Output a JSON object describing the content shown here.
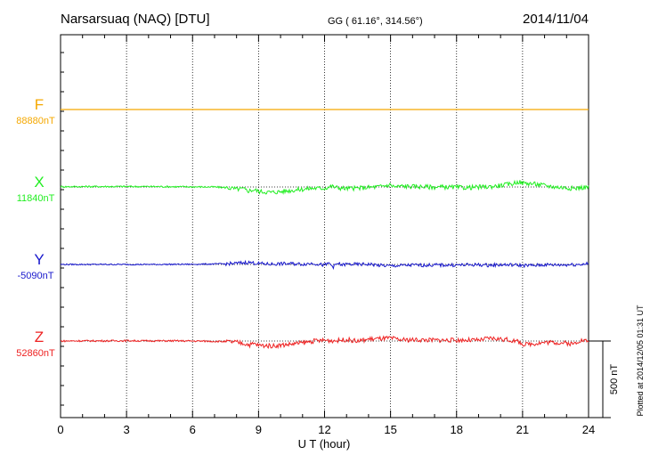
{
  "header": {
    "station": "Narsarsuaq (NAQ)  [DTU]",
    "coords": "GG ( 61.16°, 314.56°)",
    "date": "2014/11/04"
  },
  "chart_data": {
    "type": "line",
    "xlabel": "U T (hour)",
    "xlim": [
      0,
      24
    ],
    "xticks": [
      0,
      3,
      6,
      9,
      12,
      15,
      18,
      21,
      24
    ],
    "scale_bar": {
      "label": "500 nT",
      "value_nT": 500
    },
    "plotted_note": "Plotted at 2014/12/05 01:31  UT",
    "grid": "dotted vertical every 3 hours",
    "series": [
      {
        "name": "F",
        "baseline_label": "88880nT",
        "color": "#f5a800",
        "x": [
          0,
          24
        ],
        "y": [
          0,
          0
        ]
      },
      {
        "name": "X",
        "baseline_label": "11840nT",
        "color": "#22ee22",
        "x": [
          0,
          2,
          4,
          6,
          7,
          7.6,
          8,
          8.3,
          8.5,
          8.8,
          9.0,
          9.3,
          9.6,
          10.0,
          10.5,
          11.0,
          11.5,
          12.0,
          12.3,
          12.6,
          13.0,
          13.5,
          14.0,
          14.5,
          15.0,
          15.2,
          15.5,
          16.0,
          16.5,
          17.0,
          17.5,
          18.0,
          18.5,
          19.0,
          19.5,
          20.0,
          20.5,
          20.8,
          21.0,
          21.5,
          22.0,
          22.5,
          23.0,
          23.3,
          23.6,
          24.0
        ],
        "y": [
          2,
          3,
          3,
          1,
          0,
          -5,
          -14,
          -12,
          -25,
          -18,
          -29,
          -32,
          -35,
          -30,
          -22,
          -15,
          -8,
          -8,
          5,
          -5,
          -10,
          -8,
          -2,
          2,
          15,
          0,
          6,
          3,
          2,
          -1,
          0,
          -3,
          -4,
          -1,
          2,
          10,
          20,
          34,
          26,
          21,
          10,
          0,
          -5,
          -10,
          -5,
          0
        ]
      },
      {
        "name": "Y",
        "baseline_label": "-5090nT",
        "color": "#1818cc",
        "x": [
          0,
          2,
          4,
          6,
          7,
          7.5,
          8,
          8.5,
          9,
          9.5,
          10,
          10.5,
          11,
          11.5,
          12,
          12.2,
          12.4,
          12.6,
          12.8,
          13,
          13.5,
          14,
          14.5,
          15,
          15.5,
          16,
          16.5,
          17,
          18,
          19,
          19.5,
          20,
          20.5,
          21,
          21.5,
          22,
          22.5,
          23,
          23.5,
          24
        ],
        "y": [
          0,
          0,
          0,
          1,
          3,
          4,
          7,
          14,
          6,
          2,
          4,
          5,
          2,
          8,
          -6,
          8,
          -15,
          6,
          -4,
          2,
          0,
          2,
          -6,
          -10,
          -7,
          -4,
          -5,
          -4,
          -4,
          -2,
          -5,
          -2,
          -3,
          -6,
          -7,
          -2,
          -3,
          -2,
          0,
          5
        ]
      },
      {
        "name": "Z",
        "baseline_label": "52860nT",
        "color": "#ee2222",
        "x": [
          0,
          1,
          2,
          3,
          4,
          5,
          6,
          7,
          7.5,
          8.0,
          8.3,
          8.6,
          8.8,
          9.0,
          9.3,
          9.6,
          10.0,
          10.5,
          11.0,
          11.5,
          12.0,
          12.5,
          13.0,
          13.5,
          14.0,
          14.5,
          15.0,
          15.5,
          16.0,
          17.0,
          18.0,
          18.5,
          19.0,
          19.5,
          20.0,
          20.3,
          20.6,
          20.9,
          21.1,
          21.4,
          21.8,
          22.2,
          22.6,
          23.0,
          23.3,
          23.6,
          24.0
        ],
        "y": [
          0,
          1,
          1,
          2,
          1,
          1,
          0,
          -2,
          -4,
          -8,
          -15,
          -25,
          -18,
          -28,
          -30,
          -32,
          -27,
          -20,
          -12,
          0,
          5,
          2,
          10,
          -2,
          12,
          15,
          18,
          7,
          8,
          6,
          5,
          6,
          4,
          18,
          13,
          8,
          2,
          -10,
          -25,
          -18,
          -12,
          -8,
          -10,
          -14,
          -20,
          5,
          0
        ]
      }
    ]
  }
}
